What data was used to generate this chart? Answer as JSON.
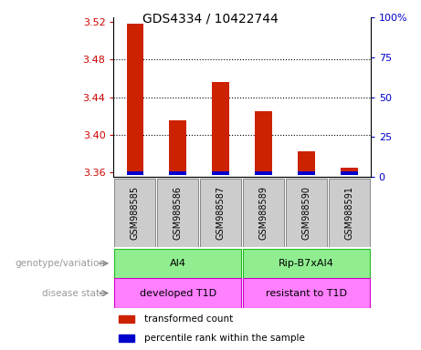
{
  "title": "GDS4334 / 10422744",
  "samples": [
    "GSM988585",
    "GSM988586",
    "GSM988587",
    "GSM988589",
    "GSM988590",
    "GSM988591"
  ],
  "red_values": [
    3.518,
    3.415,
    3.456,
    3.425,
    3.382,
    3.365
  ],
  "blue_heights": [
    0.004,
    0.004,
    0.004,
    0.004,
    0.004,
    0.004
  ],
  "ylim_left": [
    3.355,
    3.525
  ],
  "ylim_right": [
    0,
    100
  ],
  "yticks_left": [
    3.36,
    3.4,
    3.44,
    3.48,
    3.52
  ],
  "yticks_right": [
    0,
    25,
    50,
    75,
    100
  ],
  "ytick_labels_left": [
    "3.36",
    "3.40",
    "3.44",
    "3.48",
    "3.52"
  ],
  "ytick_labels_right": [
    "0",
    "25",
    "50",
    "75",
    "100%"
  ],
  "bar_bottom": 3.357,
  "genotype_groups": [
    {
      "start": 0,
      "end": 2,
      "label": "AI4"
    },
    {
      "start": 3,
      "end": 5,
      "label": "Rip-B7xAI4"
    }
  ],
  "disease_groups": [
    {
      "start": 0,
      "end": 2,
      "label": "developed T1D"
    },
    {
      "start": 3,
      "end": 5,
      "label": "resistant to T1D"
    }
  ],
  "genotype_color": "#90EE90",
  "genotype_edge_color": "#22bb22",
  "disease_color": "#FF80FF",
  "disease_edge_color": "#cc00cc",
  "xlabel_color": "#cc0000",
  "ylabel_right_color": "#0000cc",
  "bar_red_color": "#cc2200",
  "bar_blue_color": "#0000cc",
  "sample_box_color": "#cccccc",
  "row_label_color": "#999999",
  "arrow_color": "#888888",
  "legend_red_label": "transformed count",
  "legend_blue_label": "percentile rank within the sample"
}
